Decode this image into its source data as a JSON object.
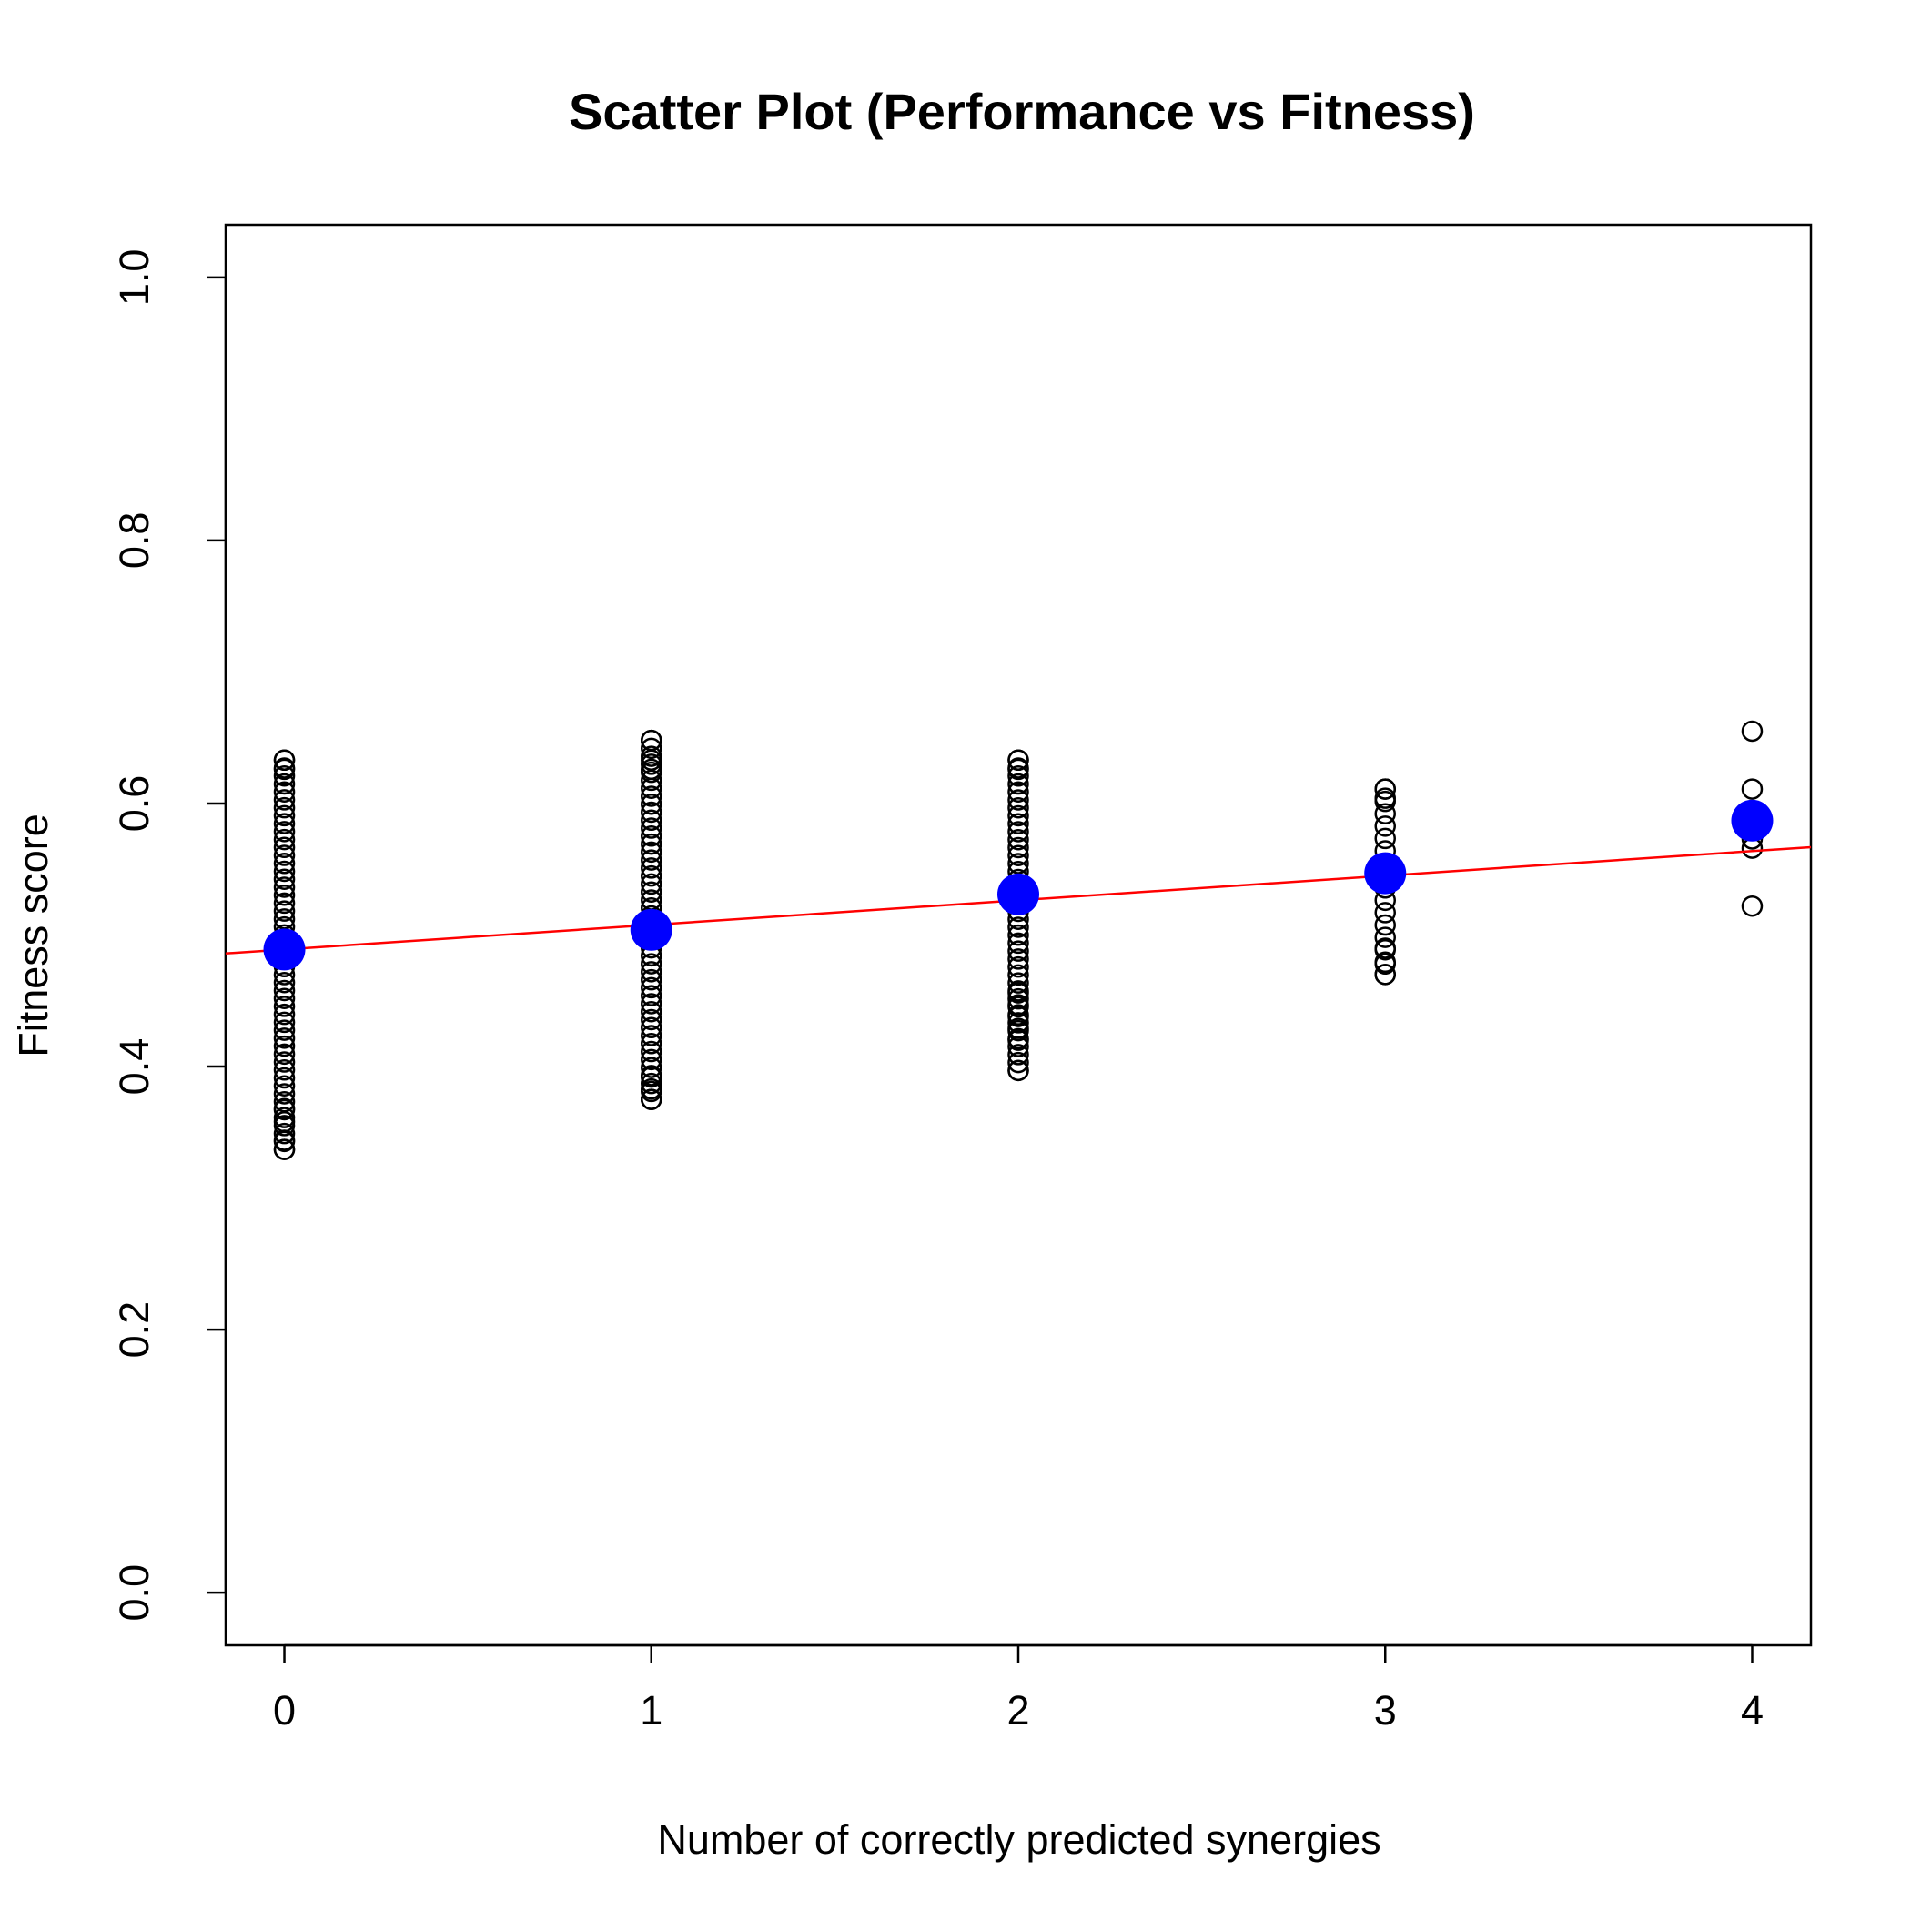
{
  "chart_data": {
    "type": "scatter",
    "title": "Scatter Plot (Performance vs Fitness)",
    "xlabel": "Number of correctly predicted synergies",
    "ylabel": "Fitness score",
    "xlim": [
      -0.16,
      4.16
    ],
    "ylim": [
      -0.04,
      1.04
    ],
    "x_ticks": [
      0,
      1,
      2,
      3,
      4
    ],
    "x_tick_labels": [
      "0",
      "1",
      "2",
      "3",
      "4"
    ],
    "y_ticks": [
      0.0,
      0.2,
      0.4,
      0.6,
      0.8,
      1.0
    ],
    "y_tick_labels": [
      "0.0",
      "0.2",
      "0.4",
      "0.6",
      "0.8",
      "1.0"
    ],
    "grid": false,
    "colors": {
      "points": "#000000",
      "means": "#0000ff",
      "fit": "#ff0000"
    },
    "groups": [
      {
        "x": 0,
        "min": 0.337,
        "max": 0.633,
        "count": 50,
        "extra": [
          0.337,
          0.344,
          0.358,
          0.368,
          0.633,
          0.626
        ]
      },
      {
        "x": 1,
        "min": 0.375,
        "max": 0.648,
        "count": 46,
        "extra": [
          0.375,
          0.383,
          0.392,
          0.648,
          0.633,
          0.626
        ]
      },
      {
        "x": 2,
        "min": 0.397,
        "max": 0.633,
        "count": 40,
        "extra": [
          0.397,
          0.42,
          0.429,
          0.438,
          0.447,
          0.456,
          0.633,
          0.626
        ]
      },
      {
        "x": 3,
        "min": 0.47,
        "max": 0.611,
        "count": 16,
        "extra": [
          0.47,
          0.478,
          0.49,
          0.611,
          0.604
        ]
      },
      {
        "x": 4,
        "values": [
          0.655,
          0.611,
          0.587,
          0.573,
          0.566,
          0.522
        ]
      }
    ],
    "means": [
      {
        "x": 0,
        "y": 0.489
      },
      {
        "x": 1,
        "y": 0.504
      },
      {
        "x": 2,
        "y": 0.531
      },
      {
        "x": 3,
        "y": 0.547
      },
      {
        "x": 4,
        "y": 0.587
      }
    ],
    "fit_line": {
      "intercept": 0.489,
      "slope": 0.0187
    }
  }
}
